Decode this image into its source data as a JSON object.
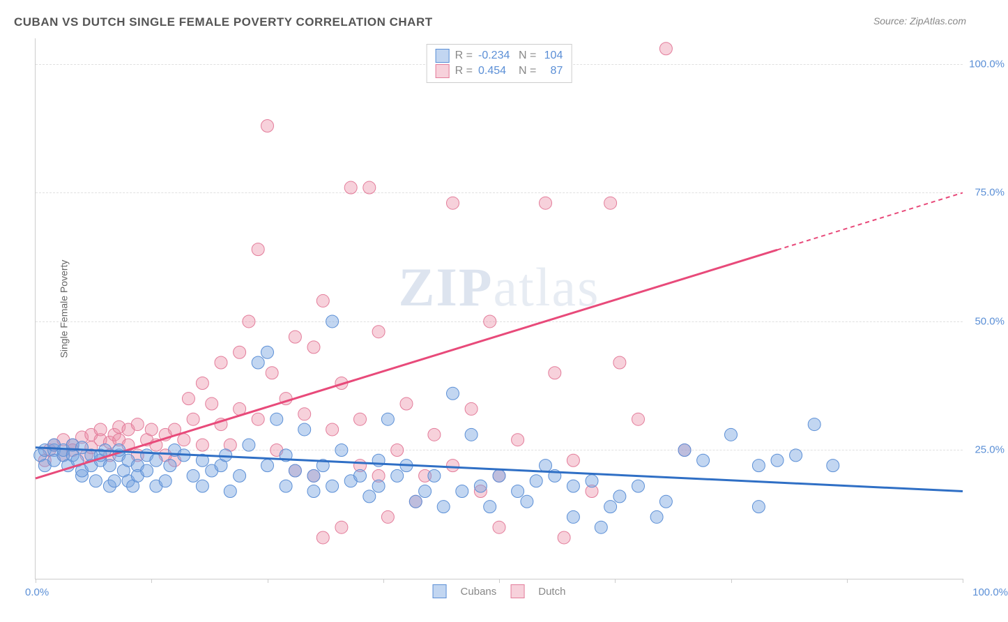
{
  "title": "CUBAN VS DUTCH SINGLE FEMALE POVERTY CORRELATION CHART",
  "source_label": "Source:",
  "source_name": "ZipAtlas.com",
  "y_axis_label": "Single Female Poverty",
  "watermark_zip": "ZIP",
  "watermark_atlas": "atlas",
  "chart": {
    "type": "scatter",
    "background_color": "#ffffff",
    "grid_color": "#e0e0e0",
    "axis_color": "#cccccc",
    "tick_label_color": "#5b8fd6",
    "xlim": [
      0,
      100
    ],
    "ylim": [
      0,
      105
    ],
    "y_ticks": [
      25,
      50,
      75,
      100
    ],
    "y_tick_labels": [
      "25.0%",
      "50.0%",
      "75.0%",
      "100.0%"
    ],
    "x_tick_positions": [
      0,
      12.5,
      25,
      37.5,
      50,
      62.5,
      75,
      87.5,
      100
    ],
    "x_tick_left_label": "0.0%",
    "x_tick_right_label": "100.0%",
    "series": {
      "cubans": {
        "label": "Cubans",
        "fill_color": "rgba(120, 165, 225, 0.45)",
        "stroke_color": "#5b8fd6",
        "marker_radius": 9,
        "trend_color": "#2f6fc5",
        "trend_width": 3,
        "trend": {
          "x1": 0,
          "y1": 25.5,
          "x2": 100,
          "y2": 17.0,
          "dash_after_x": null
        },
        "R": "-0.234",
        "N": "104",
        "points": [
          [
            0.5,
            24
          ],
          [
            1,
            25
          ],
          [
            1,
            22
          ],
          [
            2,
            25
          ],
          [
            2,
            23
          ],
          [
            2,
            26
          ],
          [
            3,
            24
          ],
          [
            3,
            25
          ],
          [
            3.5,
            22
          ],
          [
            4,
            26
          ],
          [
            4,
            24
          ],
          [
            4.5,
            23
          ],
          [
            5,
            20
          ],
          [
            5,
            25.5
          ],
          [
            5,
            21
          ],
          [
            6,
            22
          ],
          [
            6,
            24
          ],
          [
            6.5,
            19
          ],
          [
            7,
            23
          ],
          [
            7,
            24
          ],
          [
            7.5,
            25
          ],
          [
            8,
            18
          ],
          [
            8,
            22
          ],
          [
            8.5,
            19
          ],
          [
            9,
            24
          ],
          [
            9,
            25
          ],
          [
            9.5,
            21
          ],
          [
            10,
            19
          ],
          [
            10,
            23
          ],
          [
            10.5,
            18
          ],
          [
            11,
            22
          ],
          [
            11,
            20
          ],
          [
            12,
            24
          ],
          [
            12,
            21
          ],
          [
            13,
            18
          ],
          [
            13,
            23
          ],
          [
            14,
            19
          ],
          [
            14.5,
            22
          ],
          [
            15,
            25
          ],
          [
            16,
            24
          ],
          [
            17,
            20
          ],
          [
            18,
            23
          ],
          [
            18,
            18
          ],
          [
            19,
            21
          ],
          [
            20,
            22
          ],
          [
            20.5,
            24
          ],
          [
            21,
            17
          ],
          [
            22,
            20
          ],
          [
            23,
            26
          ],
          [
            24,
            42
          ],
          [
            25,
            44
          ],
          [
            25,
            22
          ],
          [
            26,
            31
          ],
          [
            27,
            18
          ],
          [
            27,
            24
          ],
          [
            28,
            21
          ],
          [
            29,
            29
          ],
          [
            30,
            17
          ],
          [
            30,
            20
          ],
          [
            31,
            22
          ],
          [
            32,
            50
          ],
          [
            32,
            18
          ],
          [
            33,
            25
          ],
          [
            34,
            19
          ],
          [
            35,
            20
          ],
          [
            36,
            16
          ],
          [
            37,
            23
          ],
          [
            37,
            18
          ],
          [
            38,
            31
          ],
          [
            39,
            20
          ],
          [
            40,
            22
          ],
          [
            41,
            15
          ],
          [
            42,
            17
          ],
          [
            43,
            20
          ],
          [
            44,
            14
          ],
          [
            45,
            36
          ],
          [
            46,
            17
          ],
          [
            47,
            28
          ],
          [
            48,
            18
          ],
          [
            49,
            14
          ],
          [
            50,
            20
          ],
          [
            52,
            17
          ],
          [
            53,
            15
          ],
          [
            54,
            19
          ],
          [
            55,
            22
          ],
          [
            56,
            20
          ],
          [
            58,
            12
          ],
          [
            58,
            18
          ],
          [
            60,
            19
          ],
          [
            61,
            10
          ],
          [
            62,
            14
          ],
          [
            63,
            16
          ],
          [
            65,
            18
          ],
          [
            67,
            12
          ],
          [
            68,
            15
          ],
          [
            70,
            25
          ],
          [
            72,
            23
          ],
          [
            75,
            28
          ],
          [
            78,
            22
          ],
          [
            80,
            23
          ],
          [
            82,
            24
          ],
          [
            84,
            30
          ],
          [
            86,
            22
          ],
          [
            78,
            14
          ]
        ]
      },
      "dutch": {
        "label": "Dutch",
        "fill_color": "rgba(235, 140, 165, 0.40)",
        "stroke_color": "#e37c9a",
        "marker_radius": 9,
        "trend_color": "#e84a7a",
        "trend_width": 3,
        "trend": {
          "x1": 0,
          "y1": 19.5,
          "x2": 100,
          "y2": 75.0,
          "dash_after_x": 80
        },
        "R": "0.454",
        "N": "87",
        "points": [
          [
            1,
            23
          ],
          [
            1.5,
            25
          ],
          [
            2,
            26
          ],
          [
            3,
            24
          ],
          [
            3,
            27
          ],
          [
            4,
            26
          ],
          [
            4,
            25
          ],
          [
            5,
            27.5
          ],
          [
            5.5,
            24
          ],
          [
            6,
            28
          ],
          [
            6,
            25.5
          ],
          [
            7,
            27
          ],
          [
            7,
            29
          ],
          [
            8,
            26.5
          ],
          [
            8,
            24
          ],
          [
            8.5,
            28
          ],
          [
            9,
            29.5
          ],
          [
            9,
            27
          ],
          [
            10,
            26
          ],
          [
            10,
            29
          ],
          [
            11,
            24
          ],
          [
            11,
            30
          ],
          [
            12,
            27
          ],
          [
            12.5,
            29
          ],
          [
            13,
            26
          ],
          [
            14,
            28
          ],
          [
            14,
            24
          ],
          [
            15,
            23
          ],
          [
            15,
            29
          ],
          [
            16,
            27
          ],
          [
            16.5,
            35
          ],
          [
            17,
            31
          ],
          [
            18,
            38
          ],
          [
            18,
            26
          ],
          [
            19,
            34
          ],
          [
            20,
            30
          ],
          [
            20,
            42
          ],
          [
            21,
            26
          ],
          [
            22,
            33
          ],
          [
            22,
            44
          ],
          [
            23,
            50
          ],
          [
            24,
            64
          ],
          [
            24,
            31
          ],
          [
            25,
            88
          ],
          [
            25.5,
            40
          ],
          [
            26,
            25
          ],
          [
            27,
            35
          ],
          [
            28,
            47
          ],
          [
            28,
            21
          ],
          [
            29,
            32
          ],
          [
            30,
            45
          ],
          [
            30,
            20
          ],
          [
            31,
            8
          ],
          [
            31,
            54
          ],
          [
            32,
            29
          ],
          [
            33,
            10
          ],
          [
            33,
            38
          ],
          [
            34,
            76
          ],
          [
            35,
            22
          ],
          [
            35,
            31
          ],
          [
            36,
            76
          ],
          [
            37,
            48
          ],
          [
            37,
            20
          ],
          [
            38,
            12
          ],
          [
            39,
            25
          ],
          [
            40,
            34
          ],
          [
            41,
            15
          ],
          [
            42,
            20
          ],
          [
            43,
            28
          ],
          [
            45,
            73
          ],
          [
            45,
            22
          ],
          [
            47,
            33
          ],
          [
            48,
            17
          ],
          [
            49,
            50
          ],
          [
            50,
            20
          ],
          [
            50,
            10
          ],
          [
            52,
            27
          ],
          [
            55,
            73
          ],
          [
            56,
            40
          ],
          [
            57,
            8
          ],
          [
            58,
            23
          ],
          [
            60,
            17
          ],
          [
            62,
            73
          ],
          [
            63,
            42
          ],
          [
            65,
            31
          ],
          [
            68,
            103
          ],
          [
            70,
            25
          ]
        ]
      }
    },
    "stats_labels": {
      "R": "R =",
      "N": "N ="
    }
  }
}
